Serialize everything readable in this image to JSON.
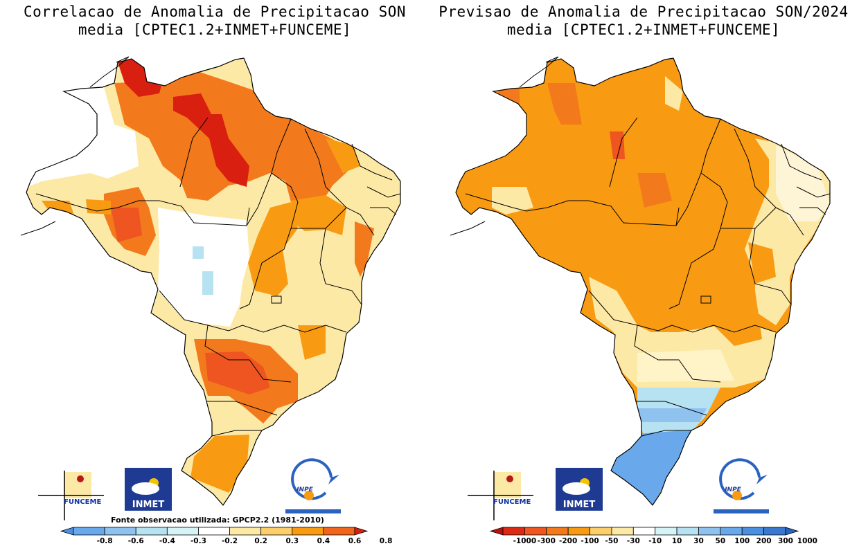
{
  "left_panel": {
    "title_line1": "Correlacao de Anomalia de Precipitacao SON",
    "title_line2": "media [CPTEC1.2+INMET+FUNCEME]",
    "source_note": "Fonte observacao utilizada: GPCP2.2 (1981-2010)",
    "colorbar": {
      "ticks": [
        "-0.8",
        "-0.6",
        "-0.4",
        "-0.3",
        "-0.2",
        "0.2",
        "0.3",
        "0.4",
        "0.6",
        "0.8"
      ],
      "colors": [
        "#4a8fe0",
        "#6aa8ec",
        "#90c2f0",
        "#b6e2f2",
        "#d6f4f6",
        "#ffffff",
        "#fde9a6",
        "#fccf6a",
        "#f99b12",
        "#f0641c",
        "#d81f10"
      ]
    }
  },
  "right_panel": {
    "title_line1": "Previsao de Anomalia de Precipitacao SON/2024",
    "title_line2": "media [CPTEC1.2+INMET+FUNCEME]",
    "colorbar": {
      "ticks": [
        "-1000",
        "-300",
        "-200",
        "-100",
        "-50",
        "-30",
        "-10",
        "10",
        "30",
        "50",
        "100",
        "200",
        "300",
        "1000"
      ],
      "colors": [
        "#c0100c",
        "#dd2a14",
        "#ee5520",
        "#f37a1c",
        "#f99b12",
        "#fccf6a",
        "#fde9a6",
        "#ffffff",
        "#d6f4f6",
        "#b6e2f2",
        "#90c2f0",
        "#6aa8ec",
        "#4a8fe0",
        "#3a78d0",
        "#2a62c0"
      ]
    }
  },
  "logos": {
    "funceme": "FUNCEME",
    "inmet": "INMET",
    "inpe": "INPE"
  }
}
